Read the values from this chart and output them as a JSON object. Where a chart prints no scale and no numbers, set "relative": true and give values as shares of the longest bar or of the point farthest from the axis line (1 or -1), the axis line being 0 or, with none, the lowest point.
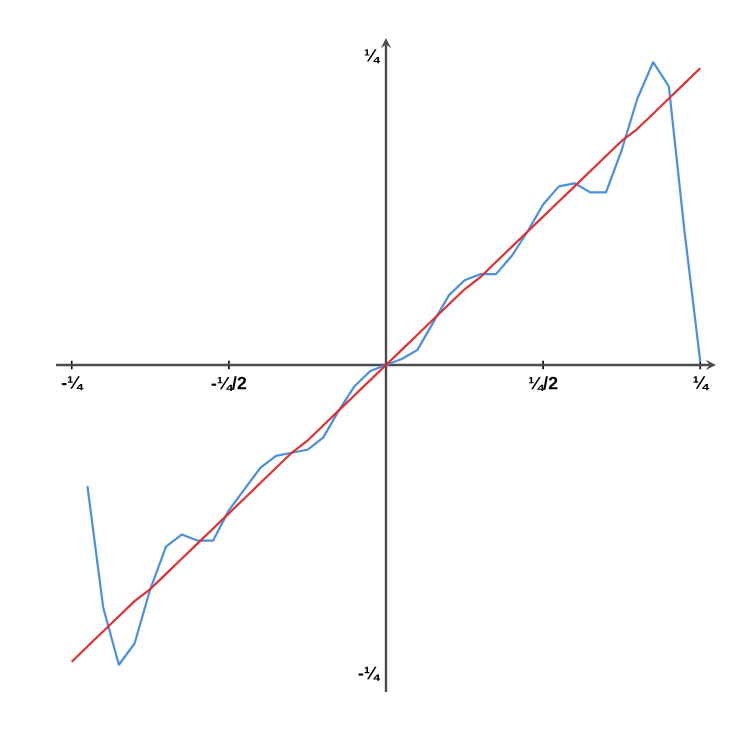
{
  "chart_data": {
    "type": "line",
    "relative": true,
    "categories": [
      "-¼",
      null,
      null,
      null,
      null,
      null,
      null,
      null,
      null,
      null,
      "-¼/2",
      null,
      null,
      null,
      null,
      null,
      null,
      null,
      null,
      null,
      null,
      null,
      null,
      null,
      null,
      null,
      null,
      null,
      null,
      null,
      "¼/2",
      null,
      null,
      null,
      null,
      null,
      null,
      null,
      null,
      null,
      "¼"
    ],
    "annotations": [
      "¼",
      "-¼"
    ],
    "marker": "none",
    "line_style": "solid",
    "series": [
      {
        "color": "#4a90e2",
        "values": [
          null,
          -0.4,
          -0.8,
          -0.99,
          -0.92,
          -0.74,
          -0.6,
          -0.56,
          -0.58,
          -0.58,
          -0.48,
          -0.41,
          -0.34,
          -0.3,
          -0.29,
          -0.28,
          -0.24,
          -0.15,
          -0.07,
          -0.02,
          0,
          0.02,
          0.05,
          0.14,
          0.23,
          0.28,
          0.3,
          0.3,
          0.36,
          0.44,
          0.53,
          0.59,
          0.6,
          0.57,
          0.57,
          0.71,
          0.88,
          1,
          0.92,
          0.44,
          0.01
        ]
      },
      {
        "color": "#e03030",
        "values": [
          -0.98,
          -0.93,
          -0.88,
          -0.83,
          -0.78,
          -0.74,
          -0.69,
          -0.64,
          -0.59,
          -0.54,
          -0.49,
          -0.44,
          -0.39,
          -0.34,
          -0.29,
          -0.25,
          -0.2,
          -0.15,
          -0.1,
          -0.05,
          0,
          0.05,
          0.1,
          0.15,
          0.2,
          0.25,
          0.29,
          0.34,
          0.39,
          0.44,
          0.49,
          0.54,
          0.59,
          0.64,
          0.69,
          0.74,
          0.78,
          0.83,
          0.88,
          0.93,
          0.98
        ]
      }
    ]
  }
}
